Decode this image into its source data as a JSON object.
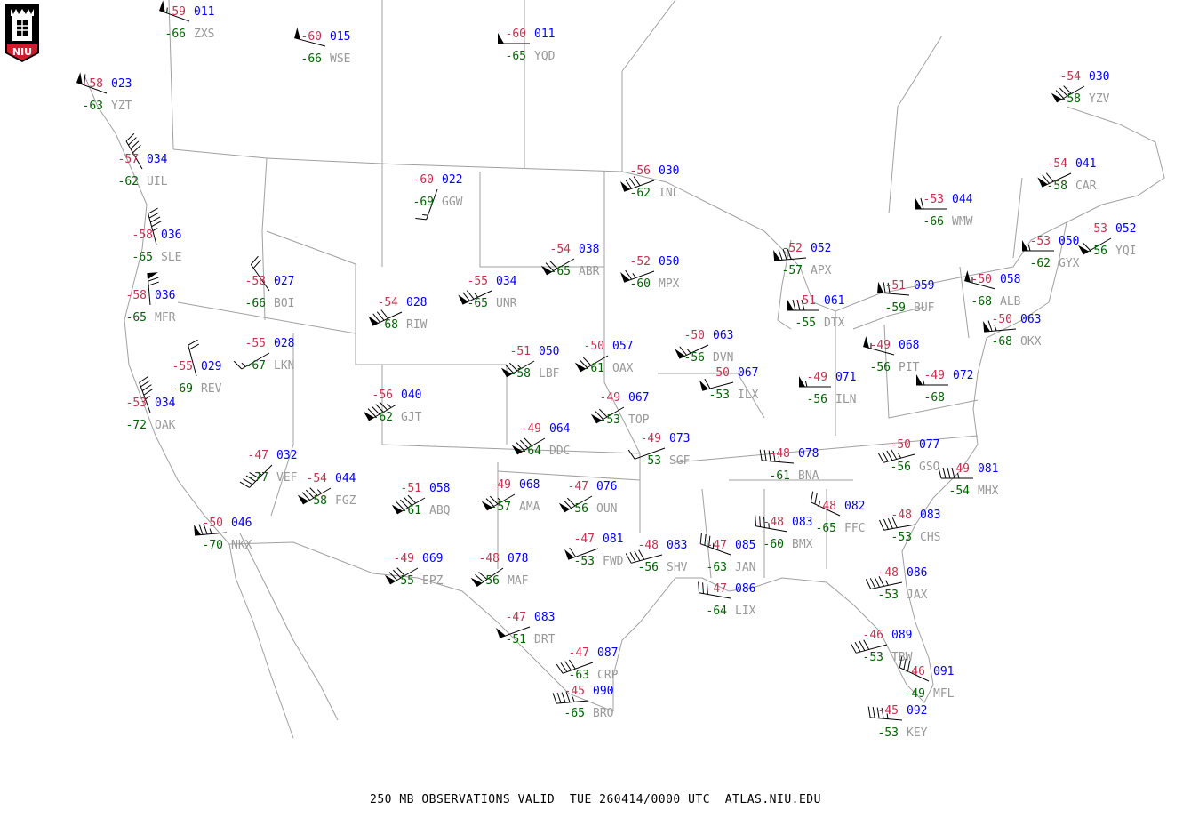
{
  "footer": "250 MB OBSERVATIONS VALID  TUE 260414/0000 UTC  ATLAS.NIU.EDU",
  "logo": {
    "text": "NIU"
  },
  "colors": {
    "temperature": "#c8324e",
    "height": "#0000ff",
    "dewpoint": "#006400",
    "station_id": "#999999",
    "borders": "#a0a0a0",
    "barbs": "#000000"
  },
  "stations": [
    {
      "id": "ZXS",
      "temp": "-59",
      "height": "011",
      "dewpoint": "-66",
      "wind": {
        "dir_deg": 290,
        "speed_kt": 55
      }
    },
    {
      "id": "WSE",
      "temp": "-60",
      "height": "015",
      "dewpoint": "-66",
      "wind": {
        "dir_deg": 285,
        "speed_kt": 50
      }
    },
    {
      "id": "YQD",
      "temp": "-60",
      "height": "011",
      "dewpoint": "-65",
      "wind": {
        "dir_deg": 270,
        "speed_kt": 50
      }
    },
    {
      "id": "YZT",
      "temp": "-58",
      "height": "023",
      "dewpoint": "-63",
      "wind": {
        "dir_deg": 290,
        "speed_kt": 60
      }
    },
    {
      "id": "UIL",
      "temp": "-57",
      "height": "034",
      "dewpoint": "-62",
      "wind": {
        "dir_deg": 330,
        "speed_kt": 40
      }
    },
    {
      "id": "SLE",
      "temp": "-58",
      "height": "036",
      "dewpoint": "-65",
      "wind": {
        "dir_deg": 345,
        "speed_kt": 45
      }
    },
    {
      "id": "MFR",
      "temp": "-58",
      "height": "036",
      "dewpoint": "-65",
      "wind": {
        "dir_deg": 355,
        "speed_kt": 70
      }
    },
    {
      "id": "BOI",
      "temp": "-58",
      "height": "027",
      "dewpoint": "-66",
      "wind": {
        "dir_deg": 325,
        "speed_kt": 20
      }
    },
    {
      "id": "REV",
      "temp": "-55",
      "height": "029",
      "dewpoint": "-69",
      "wind": {
        "dir_deg": 345,
        "speed_kt": 20
      }
    },
    {
      "id": "LKN",
      "temp": "-55",
      "height": "028",
      "dewpoint": "-67",
      "wind": {
        "dir_deg": 240,
        "speed_kt": 15
      }
    },
    {
      "id": "OAK",
      "temp": "-53",
      "height": "034",
      "dewpoint": "-72",
      "wind": {
        "dir_deg": 340,
        "speed_kt": 45
      }
    },
    {
      "id": "VEF",
      "temp": "-47",
      "height": "032",
      "dewpoint": "-77",
      "wind": {
        "dir_deg": 225,
        "speed_kt": 45
      }
    },
    {
      "id": "FGZ",
      "temp": "-54",
      "height": "044",
      "dewpoint": "-58",
      "wind": {
        "dir_deg": 240,
        "speed_kt": 85
      }
    },
    {
      "id": "NKX",
      "temp": "-50",
      "height": "046",
      "dewpoint": "-70",
      "wind": {
        "dir_deg": 265,
        "speed_kt": 75
      }
    },
    {
      "id": "GGW",
      "temp": "-60",
      "height": "022",
      "dewpoint": "-69",
      "wind": {
        "dir_deg": 200,
        "speed_kt": 15
      }
    },
    {
      "id": "RIW",
      "temp": "-54",
      "height": "028",
      "dewpoint": "-68",
      "wind": {
        "dir_deg": 245,
        "speed_kt": 80
      }
    },
    {
      "id": "UNR",
      "temp": "-55",
      "height": "034",
      "dewpoint": "-65",
      "wind": {
        "dir_deg": 245,
        "speed_kt": 75
      }
    },
    {
      "id": "GJT",
      "temp": "-56",
      "height": "040",
      "dewpoint": "-62",
      "wind": {
        "dir_deg": 240,
        "speed_kt": 95
      }
    },
    {
      "id": "ABQ",
      "temp": "-51",
      "height": "058",
      "dewpoint": "-61",
      "wind": {
        "dir_deg": 240,
        "speed_kt": 90
      }
    },
    {
      "id": "EPZ",
      "temp": "-49",
      "height": "069",
      "dewpoint": "-55",
      "wind": {
        "dir_deg": 240,
        "speed_kt": 80
      }
    },
    {
      "id": "LBF",
      "temp": "-51",
      "height": "050",
      "dewpoint": "-58",
      "wind": {
        "dir_deg": 240,
        "speed_kt": 75
      }
    },
    {
      "id": "ABR",
      "temp": "-54",
      "height": "038",
      "dewpoint": "-65",
      "wind": {
        "dir_deg": 240,
        "speed_kt": 70
      }
    },
    {
      "id": "INL",
      "temp": "-56",
      "height": "030",
      "dewpoint": "-62",
      "wind": {
        "dir_deg": 250,
        "speed_kt": 80
      }
    },
    {
      "id": "MPX",
      "temp": "-52",
      "height": "050",
      "dewpoint": "-60",
      "wind": {
        "dir_deg": 250,
        "speed_kt": 65
      }
    },
    {
      "id": "OAX",
      "temp": "-50",
      "height": "057",
      "dewpoint": "-61",
      "wind": {
        "dir_deg": 240,
        "speed_kt": 70
      }
    },
    {
      "id": "DVN",
      "temp": "-50",
      "height": "063",
      "dewpoint": "-56",
      "wind": {
        "dir_deg": 245,
        "speed_kt": 65
      }
    },
    {
      "id": "ILX",
      "temp": "-50",
      "height": "067",
      "dewpoint": "-53",
      "wind": {
        "dir_deg": 255,
        "speed_kt": 60
      }
    },
    {
      "id": "TOP",
      "temp": "-49",
      "height": "067",
      "dewpoint": "-53",
      "wind": {
        "dir_deg": 240,
        "speed_kt": 70
      }
    },
    {
      "id": "DDC",
      "temp": "-49",
      "height": "064",
      "dewpoint": "-64",
      "wind": {
        "dir_deg": 240,
        "speed_kt": 80
      }
    },
    {
      "id": "SGF",
      "temp": "-49",
      "height": "073",
      "dewpoint": "-53",
      "wind": {
        "dir_deg": 250,
        "speed_kt": 10
      }
    },
    {
      "id": "AMA",
      "temp": "-49",
      "height": "068",
      "dewpoint": "-57",
      "wind": {
        "dir_deg": 240,
        "speed_kt": 75
      }
    },
    {
      "id": "OUN",
      "temp": "-47",
      "height": "076",
      "dewpoint": "-56",
      "wind": {
        "dir_deg": 240,
        "speed_kt": 70
      }
    },
    {
      "id": "MAF",
      "temp": "-48",
      "height": "078",
      "dewpoint": "-56",
      "wind": {
        "dir_deg": 235,
        "speed_kt": 70
      }
    },
    {
      "id": "FWD",
      "temp": "-47",
      "height": "081",
      "dewpoint": "-53",
      "wind": {
        "dir_deg": 250,
        "speed_kt": 60
      }
    },
    {
      "id": "SHV",
      "temp": "-48",
      "height": "083",
      "dewpoint": "-56",
      "wind": {
        "dir_deg": 255,
        "speed_kt": 40
      }
    },
    {
      "id": "JAN",
      "temp": "-47",
      "height": "085",
      "dewpoint": "-63",
      "wind": {
        "dir_deg": 290,
        "speed_kt": 35
      }
    },
    {
      "id": "LIX",
      "temp": "-47",
      "height": "086",
      "dewpoint": "-64",
      "wind": {
        "dir_deg": 280,
        "speed_kt": 30
      }
    },
    {
      "id": "BMX",
      "temp": "-48",
      "height": "083",
      "dewpoint": "-60",
      "wind": {
        "dir_deg": 280,
        "speed_kt": 35
      }
    },
    {
      "id": "FFC",
      "temp": "-48",
      "height": "082",
      "dewpoint": "-65",
      "wind": {
        "dir_deg": 295,
        "speed_kt": 25
      }
    },
    {
      "id": "CHS",
      "temp": "-48",
      "height": "083",
      "dewpoint": "-53",
      "wind": {
        "dir_deg": 260,
        "speed_kt": 40
      }
    },
    {
      "id": "JAX",
      "temp": "-48",
      "height": "086",
      "dewpoint": "-53",
      "wind": {
        "dir_deg": 258,
        "speed_kt": 45
      }
    },
    {
      "id": "TBW",
      "temp": "-46",
      "height": "089",
      "dewpoint": "-53",
      "wind": {
        "dir_deg": 255,
        "speed_kt": 40
      }
    },
    {
      "id": "MFL",
      "temp": "-46",
      "height": "091",
      "dewpoint": "-49",
      "wind": {
        "dir_deg": 295,
        "speed_kt": 30
      }
    },
    {
      "id": "KEY",
      "temp": "-45",
      "height": "092",
      "dewpoint": "-53",
      "wind": {
        "dir_deg": 275,
        "speed_kt": 45
      }
    },
    {
      "id": "CRP",
      "temp": "-47",
      "height": "087",
      "dewpoint": "-63",
      "wind": {
        "dir_deg": 250,
        "speed_kt": 40
      }
    },
    {
      "id": "BRO",
      "temp": "-45",
      "height": "090",
      "dewpoint": "-65",
      "wind": {
        "dir_deg": 265,
        "speed_kt": 45
      }
    },
    {
      "id": "DRT",
      "temp": "-47",
      "height": "083",
      "dewpoint": "-51",
      "wind": {
        "dir_deg": 250,
        "speed_kt": 50
      }
    },
    {
      "id": "BNA",
      "temp": "-48",
      "height": "078",
      "dewpoint": "-61",
      "wind": {
        "dir_deg": 275,
        "speed_kt": 45
      }
    },
    {
      "id": "GSO",
      "temp": "-50",
      "height": "077",
      "dewpoint": "-56",
      "wind": {
        "dir_deg": 255,
        "speed_kt": 45
      }
    },
    {
      "id": "MHX",
      "temp": "-49",
      "height": "081",
      "dewpoint": "-54",
      "wind": {
        "dir_deg": 270,
        "speed_kt": 45
      }
    },
    {
      "id": "ILN",
      "temp": "-49",
      "height": "071",
      "dewpoint": "-56",
      "wind": {
        "dir_deg": 270,
        "speed_kt": 55
      }
    },
    {
      "id": "PIT",
      "temp": "-49",
      "height": "068",
      "dewpoint": "-56",
      "wind": {
        "dir_deg": 285,
        "speed_kt": 55
      }
    },
    {
      "id": "",
      "temp": "-49",
      "height": "072",
      "dewpoint": "-68",
      "wind": {
        "dir_deg": 270,
        "speed_kt": 55
      }
    },
    {
      "id": "DTX",
      "temp": "-51",
      "height": "061",
      "dewpoint": "-55",
      "wind": {
        "dir_deg": 270,
        "speed_kt": 80
      }
    },
    {
      "id": "APX",
      "temp": "-52",
      "height": "052",
      "dewpoint": "-57",
      "wind": {
        "dir_deg": 265,
        "speed_kt": 80
      }
    },
    {
      "id": "BUF",
      "temp": "-51",
      "height": "059",
      "dewpoint": "-59",
      "wind": {
        "dir_deg": 275,
        "speed_kt": 70
      }
    },
    {
      "id": "ALB",
      "temp": "-50",
      "height": "058",
      "dewpoint": "-68",
      "wind": {
        "dir_deg": 285,
        "speed_kt": 55
      }
    },
    {
      "id": "OKX",
      "temp": "-50",
      "height": "063",
      "dewpoint": "-68",
      "wind": {
        "dir_deg": 265,
        "speed_kt": 65
      }
    },
    {
      "id": "GYX",
      "temp": "-53",
      "height": "050",
      "dewpoint": "-62",
      "wind": {
        "dir_deg": 270,
        "speed_kt": 55
      }
    },
    {
      "id": "YQI",
      "temp": "-53",
      "height": "052",
      "dewpoint": "-56",
      "wind": {
        "dir_deg": 240,
        "speed_kt": 60
      }
    },
    {
      "id": "CAR",
      "temp": "-54",
      "height": "041",
      "dewpoint": "-58",
      "wind": {
        "dir_deg": 245,
        "speed_kt": 70
      }
    },
    {
      "id": "WMW",
      "temp": "-53",
      "height": "044",
      "dewpoint": "-66",
      "wind": {
        "dir_deg": 270,
        "speed_kt": 60
      }
    },
    {
      "id": "YZV",
      "temp": "-54",
      "height": "030",
      "dewpoint": "-58",
      "wind": {
        "dir_deg": 240,
        "speed_kt": 80
      }
    }
  ]
}
